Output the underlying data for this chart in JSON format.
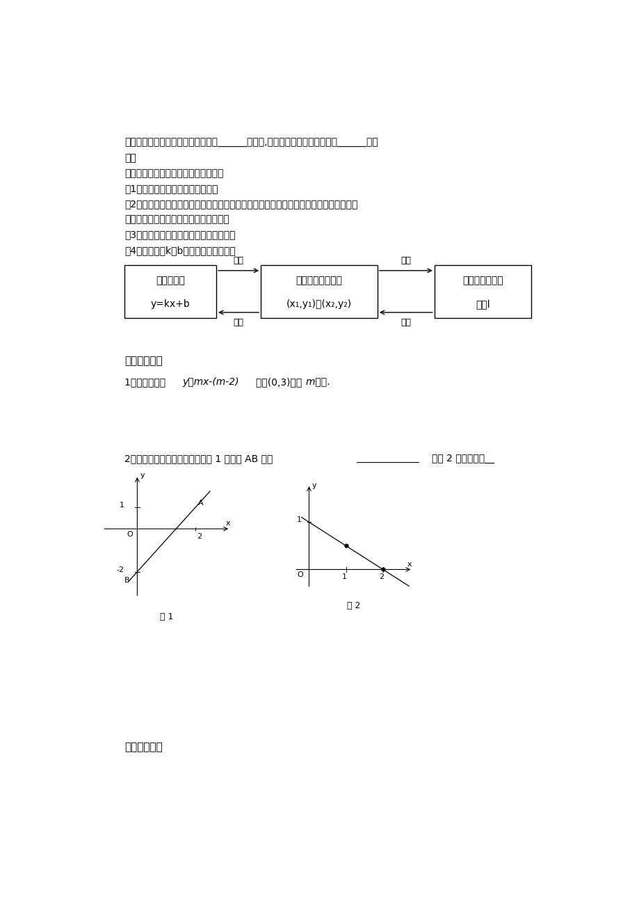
{
  "bg_color": "#ffffff",
  "page_width": 9.2,
  "page_height": 13.02,
  "line1": "总结：确定正比例函数的表达式需要______个条件,确定一次函数的表达式需要______个条",
  "line2": "件。",
  "line3": "求函数的表达式步骤：（待定系数法）",
  "step1": "（1）写出函数解析式的一般形式；",
  "step2": "（2）把已知条件（通常是自变量和函数的对应值或图像上某点的坐标等）代入函数解析式",
  "step2b": "中，得到关于待定系数的方程或方程组。",
  "step3": "（3）解方程或方程组求出待定系数的值，",
  "step4": "（4）把求出的k，b值代回到表达式中。",
  "box1_line1": "函数解析式",
  "box1_line2": "y=kx+b",
  "box2_line1": "满足条件的两定点",
  "box2_line2": "(x₁,y₁)与(x₂,y₂)",
  "box3_line1": "一次函数的图象",
  "box3_line2": "直线l",
  "arrow_top1": "选取",
  "arrow_bot1": "解出",
  "arrow_top2": "画出",
  "arrow_bot2": "选取",
  "sec4": "四、课堂作业",
  "q1a": "1、若一次函数 ",
  "q1b": "y＝mx-(m-2)",
  "q1c": "过点(0,3)，求 ",
  "q1d": "m",
  "q1e": " 的值.",
  "q2a": "2、写出下图中直线的解析式：图 1 中直线 AB 为：",
  "q2b": "_____________",
  "q2c": "，图 2 中的直线为__",
  "fig1_label": "图 1",
  "fig2_label": "图 2",
  "sec5": "五、课后反思",
  "font_size_body": 10,
  "font_size_head": 11
}
